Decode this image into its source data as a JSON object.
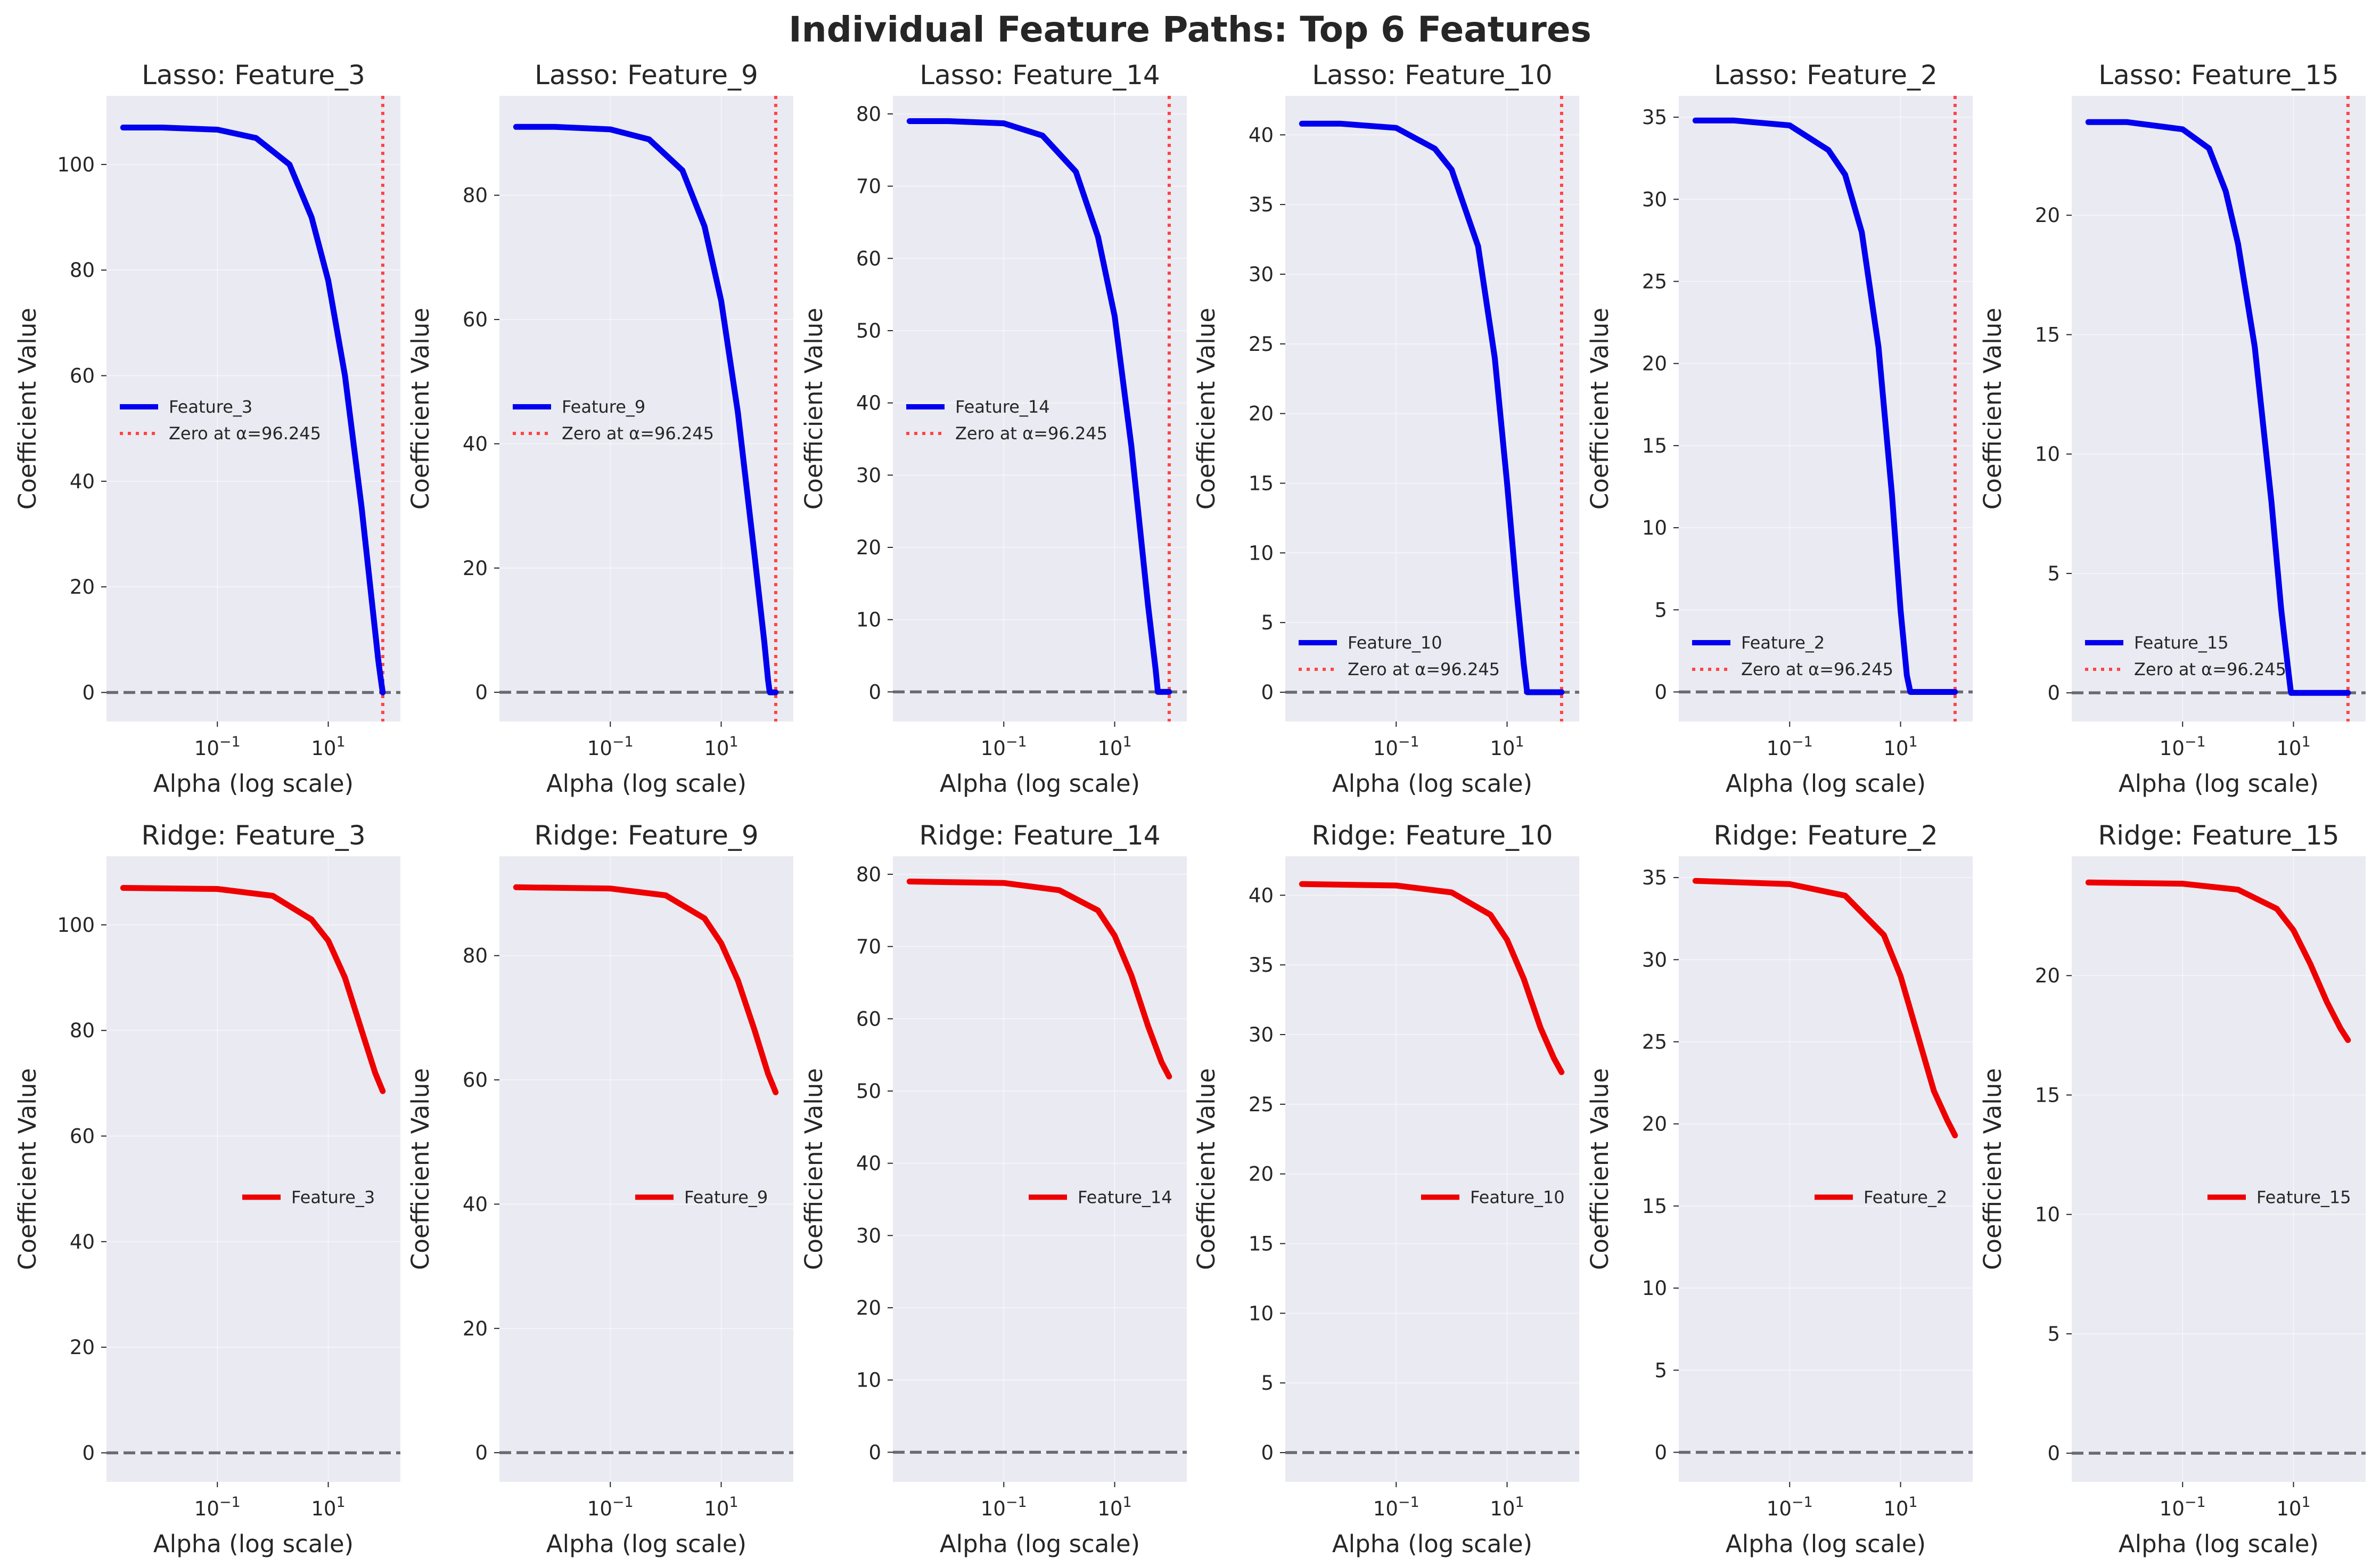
{
  "title": "Individual Feature Paths: Top 6 Features",
  "colors": {
    "lasso": "#0000ee",
    "ridge": "#ee0000",
    "zero_marker": "#ff4444",
    "zero_line": "#6a6a72"
  },
  "chart_data": {
    "type": "line",
    "xscale": "log",
    "xlim": [
      0.001,
      200
    ],
    "xticks": [
      0.1,
      10
    ],
    "xtick_labels": [
      [
        "10",
        "−1"
      ],
      [
        "10",
        "1"
      ]
    ],
    "xlabel": "Alpha (log scale)",
    "ylabel": "Coefficient Value",
    "grid": true,
    "lasso_zero_label": "Zero at α=96.245",
    "lasso_zero_alpha": 96.245,
    "rows": [
      {
        "method": "Lasso",
        "panels": [
          {
            "title": "Lasso: Feature_3",
            "feature": "Feature_3",
            "start": 107,
            "end": 0,
            "ylim": [
              -5.5,
              113
            ],
            "yticks": [
              0,
              20,
              40,
              60,
              80,
              100
            ],
            "legend": "mid-left",
            "series_points": [
              [
                0.002,
                107
              ],
              [
                0.01,
                107
              ],
              [
                0.1,
                106.6
              ],
              [
                0.5,
                105
              ],
              [
                2,
                100
              ],
              [
                5,
                90
              ],
              [
                10,
                78
              ],
              [
                20,
                60
              ],
              [
                40,
                35
              ],
              [
                60,
                18
              ],
              [
                80,
                6
              ],
              [
                90,
                2
              ],
              [
                96,
                0
              ]
            ]
          },
          {
            "title": "Lasso: Feature_9",
            "feature": "Feature_9",
            "start": 91,
            "end": 0,
            "ylim": [
              -4.7,
              96
            ],
            "yticks": [
              0,
              20,
              40,
              60,
              80
            ],
            "legend": "mid-left",
            "series_points": [
              [
                0.002,
                91
              ],
              [
                0.01,
                91
              ],
              [
                0.1,
                90.6
              ],
              [
                0.5,
                89
              ],
              [
                2,
                84
              ],
              [
                5,
                75
              ],
              [
                10,
                63
              ],
              [
                20,
                45
              ],
              [
                40,
                22
              ],
              [
                60,
                8
              ],
              [
                70,
                2
              ],
              [
                75,
                0
              ],
              [
                96,
                0
              ]
            ]
          },
          {
            "title": "Lasso: Feature_14",
            "feature": "Feature_14",
            "start": 79,
            "end": 0,
            "ylim": [
              -4.1,
              82.5
            ],
            "yticks": [
              0,
              10,
              20,
              30,
              40,
              50,
              60,
              70,
              80
            ],
            "legend": "mid-left",
            "series_points": [
              [
                0.002,
                79
              ],
              [
                0.01,
                79
              ],
              [
                0.1,
                78.7
              ],
              [
                0.5,
                77
              ],
              [
                2,
                72
              ],
              [
                5,
                63
              ],
              [
                10,
                52
              ],
              [
                20,
                34
              ],
              [
                40,
                12
              ],
              [
                55,
                3
              ],
              [
                60,
                0
              ],
              [
                96,
                0
              ]
            ]
          },
          {
            "title": "Lasso: Feature_10",
            "feature": "Feature_10",
            "start": 40.8,
            "end": 0,
            "ylim": [
              -2.1,
              42.8
            ],
            "yticks": [
              0,
              5,
              10,
              15,
              20,
              25,
              30,
              35,
              40
            ],
            "legend": "lower-left",
            "series_points": [
              [
                0.002,
                40.8
              ],
              [
                0.01,
                40.8
              ],
              [
                0.1,
                40.5
              ],
              [
                0.5,
                39
              ],
              [
                1,
                37.5
              ],
              [
                3,
                32
              ],
              [
                6,
                24
              ],
              [
                10,
                15
              ],
              [
                15,
                7
              ],
              [
                20,
                2
              ],
              [
                23,
                0
              ],
              [
                96,
                0
              ]
            ]
          },
          {
            "title": "Lasso: Feature_2",
            "feature": "Feature_2",
            "start": 34.8,
            "end": 0,
            "ylim": [
              -1.8,
              36.3
            ],
            "yticks": [
              0,
              5,
              10,
              15,
              20,
              25,
              30,
              35
            ],
            "legend": "lower-left",
            "series_points": [
              [
                0.002,
                34.8
              ],
              [
                0.01,
                34.8
              ],
              [
                0.1,
                34.5
              ],
              [
                0.5,
                33
              ],
              [
                1,
                31.5
              ],
              [
                2,
                28
              ],
              [
                4,
                21
              ],
              [
                7,
                12
              ],
              [
                10,
                5
              ],
              [
                13,
                1
              ],
              [
                15,
                0
              ],
              [
                96,
                0
              ]
            ]
          },
          {
            "title": "Lasso: Feature_15",
            "feature": "Feature_15",
            "start": 23.9,
            "end": 0,
            "ylim": [
              -1.2,
              25
            ],
            "yticks": [
              0,
              5,
              10,
              15,
              20
            ],
            "legend": "lower-left",
            "series_points": [
              [
                0.002,
                23.9
              ],
              [
                0.01,
                23.9
              ],
              [
                0.1,
                23.6
              ],
              [
                0.3,
                22.8
              ],
              [
                0.6,
                21
              ],
              [
                1,
                18.8
              ],
              [
                2,
                14.5
              ],
              [
                4,
                8
              ],
              [
                6,
                3.5
              ],
              [
                8,
                1
              ],
              [
                9,
                0
              ],
              [
                96,
                0
              ]
            ]
          }
        ]
      },
      {
        "method": "Ridge",
        "panels": [
          {
            "title": "Ridge: Feature_3",
            "feature": "Feature_3",
            "start": 107,
            "end": 68.5,
            "ylim": [
              -5.5,
              113
            ],
            "yticks": [
              0,
              20,
              40,
              60,
              80,
              100
            ],
            "legend": "mid-right",
            "series_points": [
              [
                0.002,
                107
              ],
              [
                0.1,
                106.8
              ],
              [
                1,
                105.5
              ],
              [
                5,
                101
              ],
              [
                10,
                97
              ],
              [
                20,
                90
              ],
              [
                40,
                80
              ],
              [
                70,
                72
              ],
              [
                96,
                68.5
              ]
            ]
          },
          {
            "title": "Ridge: Feature_9",
            "feature": "Feature_9",
            "start": 91,
            "end": 58,
            "ylim": [
              -4.7,
              96
            ],
            "yticks": [
              0,
              20,
              40,
              60,
              80
            ],
            "legend": "mid-right",
            "series_points": [
              [
                0.002,
                91
              ],
              [
                0.1,
                90.8
              ],
              [
                1,
                89.7
              ],
              [
                5,
                86
              ],
              [
                10,
                82
              ],
              [
                20,
                76
              ],
              [
                40,
                68
              ],
              [
                70,
                61
              ],
              [
                96,
                58
              ]
            ]
          },
          {
            "title": "Ridge: Feature_14",
            "feature": "Feature_14",
            "start": 79,
            "end": 52,
            "ylim": [
              -4.1,
              82.5
            ],
            "yticks": [
              0,
              10,
              20,
              30,
              40,
              50,
              60,
              70,
              80
            ],
            "legend": "mid-right",
            "series_points": [
              [
                0.002,
                79
              ],
              [
                0.1,
                78.8
              ],
              [
                1,
                77.8
              ],
              [
                5,
                75
              ],
              [
                10,
                71.5
              ],
              [
                20,
                66
              ],
              [
                40,
                59
              ],
              [
                70,
                54
              ],
              [
                96,
                52
              ]
            ]
          },
          {
            "title": "Ridge: Feature_10",
            "feature": "Feature_10",
            "start": 40.8,
            "end": 27.3,
            "ylim": [
              -2.1,
              42.8
            ],
            "yticks": [
              0,
              5,
              10,
              15,
              20,
              25,
              30,
              35,
              40
            ],
            "legend": "mid-right",
            "series_points": [
              [
                0.002,
                40.8
              ],
              [
                0.1,
                40.7
              ],
              [
                1,
                40.2
              ],
              [
                5,
                38.6
              ],
              [
                10,
                36.8
              ],
              [
                20,
                34
              ],
              [
                40,
                30.5
              ],
              [
                70,
                28.3
              ],
              [
                96,
                27.3
              ]
            ]
          },
          {
            "title": "Ridge: Feature_2",
            "feature": "Feature_2",
            "start": 34.8,
            "end": 19.3,
            "ylim": [
              -1.8,
              36.3
            ],
            "yticks": [
              0,
              5,
              10,
              15,
              20,
              25,
              30,
              35
            ],
            "legend": "mid-right",
            "series_points": [
              [
                0.002,
                34.8
              ],
              [
                0.1,
                34.6
              ],
              [
                1,
                33.9
              ],
              [
                5,
                31.5
              ],
              [
                10,
                29
              ],
              [
                20,
                25.5
              ],
              [
                40,
                22
              ],
              [
                70,
                20.2
              ],
              [
                96,
                19.3
              ]
            ]
          },
          {
            "title": "Ridge: Feature_15",
            "feature": "Feature_15",
            "start": 23.9,
            "end": 17.3,
            "ylim": [
              -1.2,
              25
            ],
            "yticks": [
              0,
              5,
              10,
              15,
              20
            ],
            "legend": "mid-right",
            "series_points": [
              [
                0.002,
                23.9
              ],
              [
                0.1,
                23.85
              ],
              [
                1,
                23.6
              ],
              [
                5,
                22.8
              ],
              [
                10,
                21.9
              ],
              [
                20,
                20.5
              ],
              [
                40,
                18.9
              ],
              [
                70,
                17.8
              ],
              [
                96,
                17.3
              ]
            ]
          }
        ]
      }
    ]
  }
}
